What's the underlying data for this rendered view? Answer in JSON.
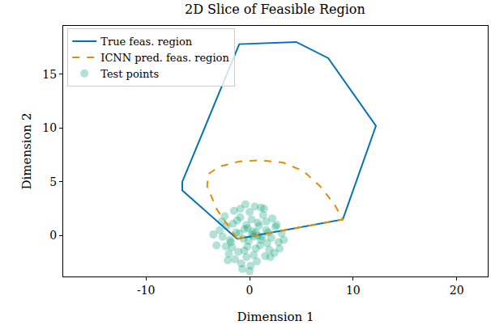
{
  "chart_data": {
    "type": "line",
    "title": "2D Slice of Feasible Region",
    "x_label": "Dimension 1",
    "y_label": "Dimension 2",
    "xlim": [
      -18,
      23
    ],
    "ylim": [
      -3.8,
      19.5
    ],
    "xticks": [
      -10,
      0,
      10,
      20
    ],
    "yticks": [
      0,
      5,
      10,
      15
    ],
    "grid": false,
    "legend": "upper left",
    "series": [
      {
        "name": "True feas. region",
        "type": "line",
        "color": "#0173b2",
        "line_style": "solid",
        "x": [
          -1.2,
          9.0,
          12.2,
          7.6,
          4.5,
          -1.0,
          -6.5,
          -6.5,
          -1.2
        ],
        "values": [
          -0.3,
          1.5,
          10.2,
          16.5,
          18.0,
          17.8,
          5.0,
          4.2,
          -0.3
        ]
      },
      {
        "name": "ICNN pred. feas. region",
        "type": "line",
        "color": "#de8f05",
        "line_style": "dashed",
        "x": [
          -1.2,
          9.0,
          8.2,
          6.8,
          5.2,
          3.2,
          1.0,
          -1.0,
          -3.0,
          -4.0,
          -4.1,
          -3.2,
          -1.2
        ],
        "values": [
          -0.3,
          1.5,
          2.9,
          4.6,
          6.0,
          6.8,
          7.0,
          6.9,
          6.4,
          5.7,
          4.6,
          2.5,
          -0.3
        ]
      },
      {
        "name": "Test points",
        "type": "scatter",
        "color": "#029e73",
        "marker": "circle",
        "x": [
          0.2,
          -0.5,
          1.1,
          -1.3,
          0.8,
          -0.2,
          1.6,
          -1.8,
          0.4,
          -0.9,
          2.1,
          -2.2,
          0.0,
          1.3,
          -1.1,
          0.7,
          -0.6,
          2.5,
          -2.6,
          1.9,
          -1.5,
          0.3,
          -0.3,
          1.0,
          -2.0,
          2.8,
          -2.9,
          0.5,
          -0.8,
          1.5,
          -1.6,
          0.9,
          -0.1,
          2.2,
          -2.4,
          1.2,
          -1.0,
          0.6,
          -0.4,
          1.8,
          -3.2,
          3.1,
          -0.7,
          0.1,
          2.4,
          -1.9,
          1.4,
          -1.4,
          0.2,
          -2.7,
          2.6,
          -0.5,
          1.7,
          -1.2,
          0.8,
          -0.2,
          3.3,
          -3.5,
          0.0,
          1.1,
          -2.1,
          2.0,
          -0.9,
          0.4,
          -1.7,
          1.6,
          -0.3,
          2.9,
          -2.3,
          0.6
        ],
        "values": [
          0.1,
          0.6,
          -0.4,
          0.3,
          1.2,
          -1.0,
          0.5,
          -0.6,
          -1.8,
          1.7,
          -0.2,
          0.9,
          2.2,
          1.9,
          -1.5,
          -2.4,
          -0.3,
          0.8,
          -0.1,
          -1.3,
          2.3,
          0.4,
          1.0,
          -0.9,
          -1.7,
          -0.6,
          0.5,
          2.7,
          -2.6,
          -1.9,
          1.1,
          0.9,
          -0.5,
          1.6,
          1.8,
          -0.1,
          0.2,
          -1.2,
          2.9,
          0.3,
          -0.9,
          0.2,
          -3.1,
          -2.8,
          -1.6,
          -0.4,
          2.5,
          -2.2,
          1.5,
          1.3,
          1.0,
          -1.4,
          -0.7,
          1.4,
          0.0,
          0.7,
          -0.4,
          0.1,
          -3.3,
          2.6,
          -2.3,
          -2.0,
          2.5,
          -0.1,
          -1.1,
          1.3,
          -2.0,
          -1.2,
          -1.0,
          0.3
        ]
      }
    ]
  }
}
